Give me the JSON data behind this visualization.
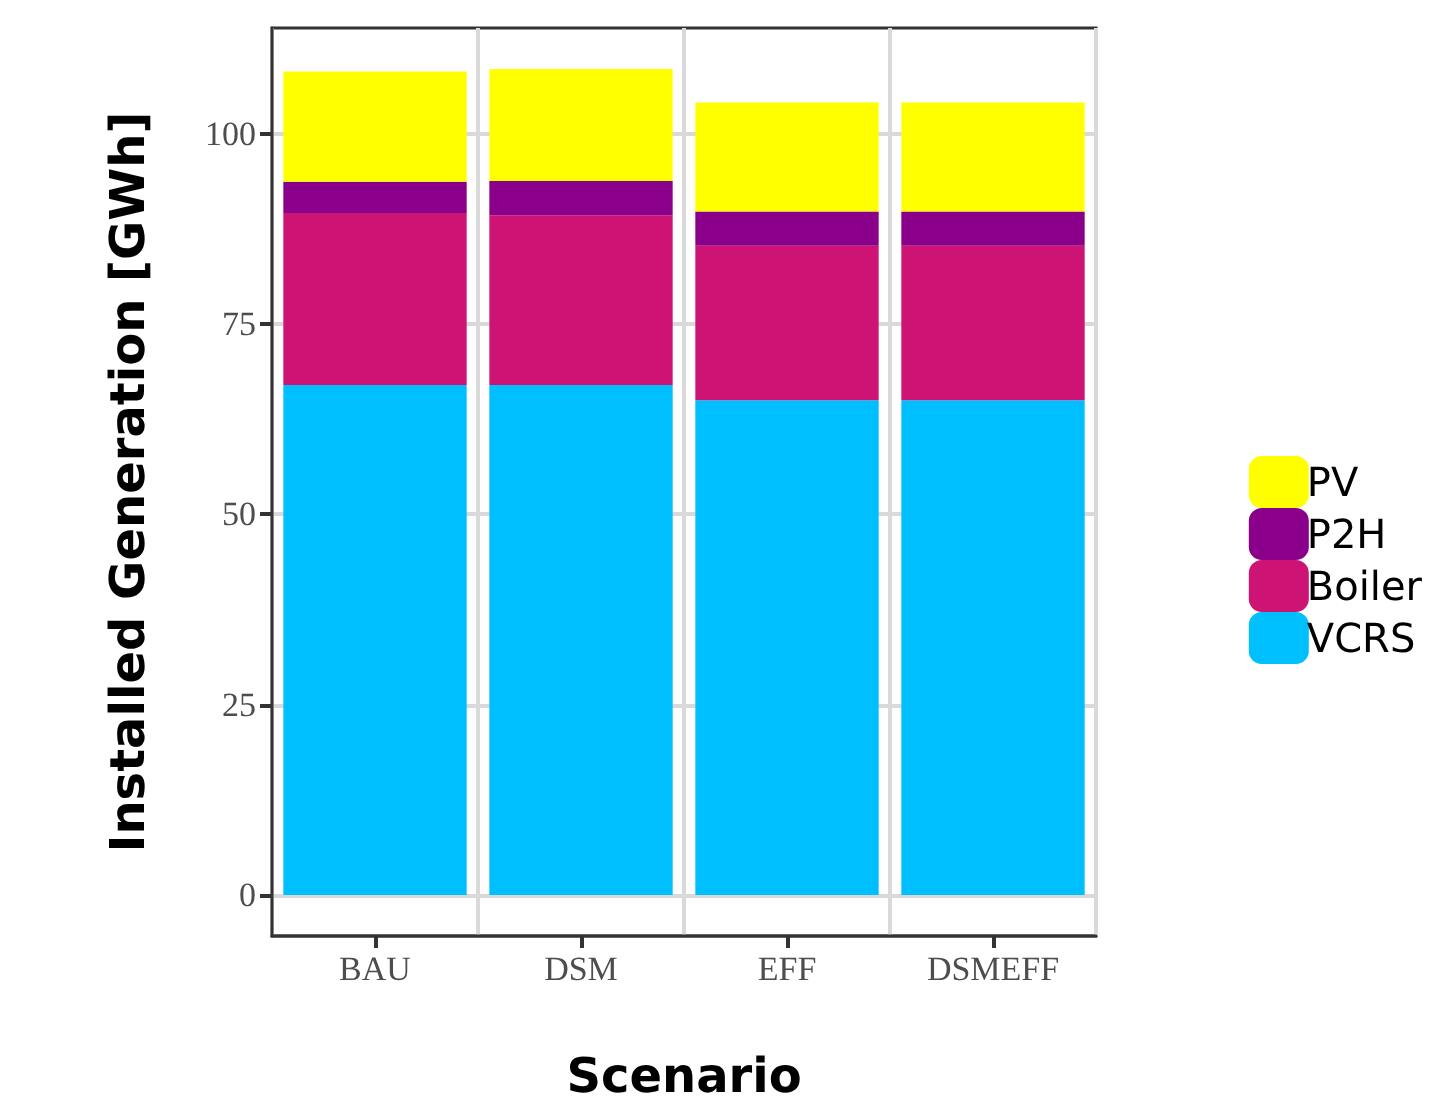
{
  "chart_data": {
    "type": "bar",
    "xlabel": "Scenario",
    "ylabel": "Installed Generation [GWh]",
    "categories": [
      "BAU",
      "DSM",
      "EFF",
      "DSMEFF"
    ],
    "stacked": true,
    "series": [
      {
        "name": "VCRS",
        "color": "#00bfff",
        "values": [
          67,
          67,
          65,
          65
        ]
      },
      {
        "name": "Boiler",
        "color": "#cd1374",
        "values": [
          22.6,
          22.3,
          20.3,
          20.3
        ]
      },
      {
        "name": "P2H",
        "color": "#8b008b",
        "values": [
          4.1,
          4.5,
          4.5,
          4.5
        ]
      },
      {
        "name": "PV",
        "color": "#ffff00",
        "values": [
          14.5,
          14.7,
          14.3,
          14.3
        ]
      }
    ],
    "ylim": [
      -5.4,
      113.9
    ],
    "yticks": [
      0,
      25,
      50,
      75,
      100
    ],
    "grid": true,
    "legend": "right"
  }
}
